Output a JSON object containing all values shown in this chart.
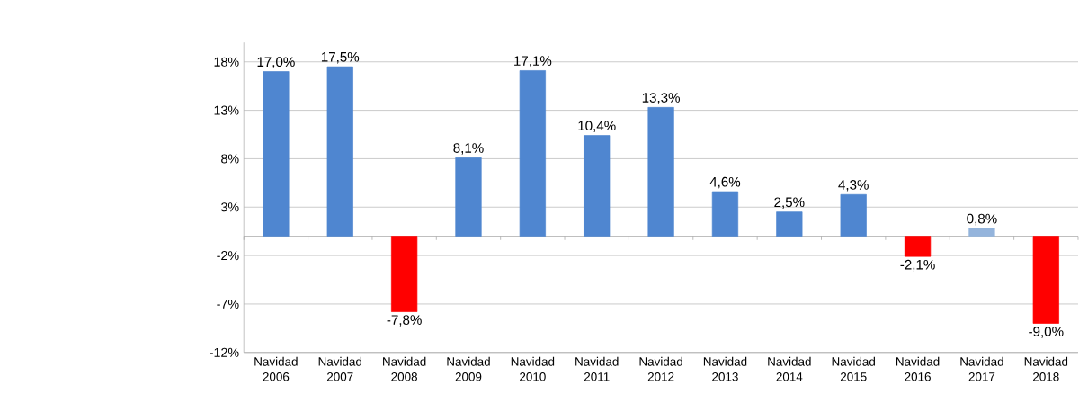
{
  "chart_data": {
    "type": "bar",
    "categories": [
      "Navidad 2006",
      "Navidad 2007",
      "Navidad 2008",
      "Navidad 2009",
      "Navidad 2010",
      "Navidad 2011",
      "Navidad 2012",
      "Navidad 2013",
      "Navidad 2014",
      "Navidad 2015",
      "Navidad 2016",
      "Navidad 2017",
      "Navidad 2018"
    ],
    "values": [
      17.0,
      17.5,
      -7.8,
      8.1,
      17.1,
      10.4,
      13.3,
      4.6,
      2.5,
      4.3,
      -2.1,
      0.8,
      -9.0
    ],
    "value_labels": [
      "17,0%",
      "17,5%",
      "-7,8%",
      "8,1%",
      "17,1%",
      "10,4%",
      "13,3%",
      "4,6%",
      "2,5%",
      "4,3%",
      "-2,1%",
      "0,8%",
      "-9,0%"
    ],
    "colors": [
      "#4f86d0",
      "#4f86d0",
      "#ff0000",
      "#4f86d0",
      "#4f86d0",
      "#4f86d0",
      "#4f86d0",
      "#4f86d0",
      "#4f86d0",
      "#4f86d0",
      "#ff0000",
      "#94b4dc",
      "#ff0000"
    ],
    "ylim": [
      -12,
      20
    ],
    "yticks": [
      {
        "value": -12,
        "label": "-12%"
      },
      {
        "value": -7,
        "label": "-7%"
      },
      {
        "value": -2,
        "label": "-2%"
      },
      {
        "value": 3,
        "label": "3%"
      },
      {
        "value": 8,
        "label": "8%"
      },
      {
        "value": 13,
        "label": "13%"
      },
      {
        "value": 18,
        "label": "18%"
      }
    ],
    "grid": "y"
  }
}
